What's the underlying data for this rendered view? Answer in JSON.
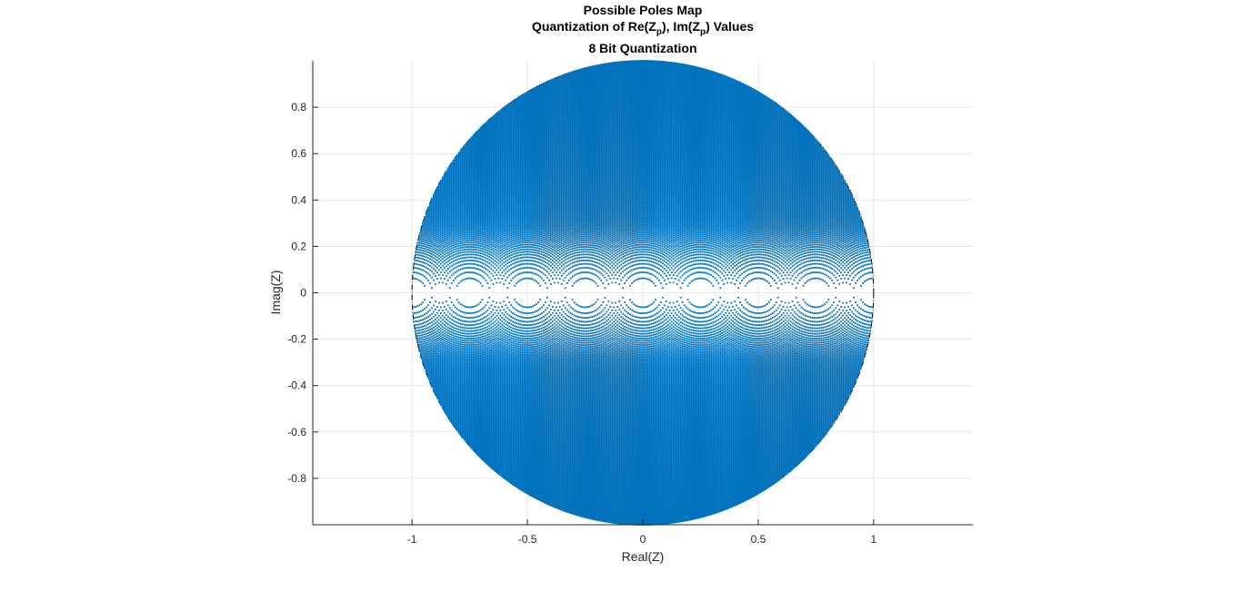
{
  "chart_data": {
    "type": "scatter",
    "title": {
      "line1": "Possible Poles Map",
      "line2_prefix": "Quantization of Re(Z",
      "line2_sub1": "p",
      "line2_mid": "), Im(Z",
      "line2_sub2": "p",
      "line2_suffix": ") Values",
      "line3": "8 Bit Quantization"
    },
    "xlabel": "Real(Z)",
    "ylabel": "Imag(Z)",
    "xlim": [
      -1.43,
      1.43
    ],
    "ylim": [
      -1.0,
      1.0
    ],
    "xticks": [
      {
        "value": -1,
        "label": "-1"
      },
      {
        "value": -0.5,
        "label": "-0.5"
      },
      {
        "value": 0,
        "label": "0"
      },
      {
        "value": 0.5,
        "label": "0.5"
      },
      {
        "value": 1,
        "label": "1"
      }
    ],
    "yticks": [
      {
        "value": 0.8,
        "label": "0.8"
      },
      {
        "value": 0.6,
        "label": "0.6"
      },
      {
        "value": 0.4,
        "label": "0.4"
      },
      {
        "value": 0.2,
        "label": "0.2"
      },
      {
        "value": 0,
        "label": "0"
      },
      {
        "value": -0.2,
        "label": "-0.2"
      },
      {
        "value": -0.4,
        "label": "-0.4"
      },
      {
        "value": -0.6,
        "label": "-0.6"
      },
      {
        "value": -0.8,
        "label": "-0.8"
      }
    ],
    "grid": true,
    "unit_circle": {
      "radius": 1,
      "style": "dash-dot"
    },
    "series": [
      {
        "marker": "point",
        "color": "#0072BD",
        "pole_grid": {
          "quantization_bits": 8,
          "coefficient_a1_range": [
            -2,
            2
          ],
          "coefficient_a2_range": [
            0,
            1
          ],
          "inside_unit_circle": true
        }
      }
    ]
  },
  "colors": {
    "points": "#0072BD",
    "grid": "#e6e6e6",
    "axes": "#262626",
    "circle": "#000000"
  }
}
